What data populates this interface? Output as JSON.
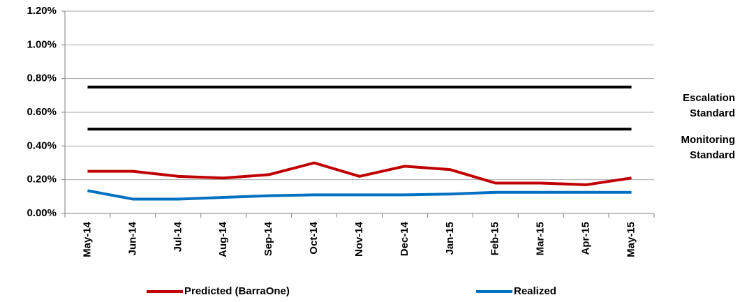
{
  "chart_data": {
    "type": "line",
    "categories": [
      "May-14",
      "Jun-14",
      "Jul-14",
      "Aug-14",
      "Sep-14",
      "Oct-14",
      "Nov-14",
      "Dec-14",
      "Jan-15",
      "Feb-15",
      "Mar-15",
      "Apr-15",
      "May-15"
    ],
    "series": [
      {
        "name": "Predicted (BarraOne)",
        "color": "#c00000",
        "values": [
          0.25,
          0.25,
          0.22,
          0.21,
          0.23,
          0.3,
          0.22,
          0.28,
          0.26,
          0.18,
          0.18,
          0.17,
          0.21
        ]
      },
      {
        "name": "Realized",
        "color": "#0070c0",
        "values": [
          0.135,
          0.085,
          0.085,
          0.095,
          0.105,
          0.11,
          0.11,
          0.11,
          0.115,
          0.125,
          0.125,
          0.125,
          0.125
        ]
      }
    ],
    "reference_lines": [
      {
        "name": "Escalation Standard",
        "value": 0.75,
        "color": "#000000"
      },
      {
        "name": "Monitoring Standard",
        "value": 0.5,
        "color": "#000000"
      }
    ],
    "ylim": [
      0,
      1.2
    ],
    "yticks": [
      {
        "value": 0,
        "label": "0.00%"
      },
      {
        "value": 0.2,
        "label": "0.20%"
      },
      {
        "value": 0.4,
        "label": "0.40%"
      },
      {
        "value": 0.6,
        "label": "0.60%"
      },
      {
        "value": 0.8,
        "label": "0.80%"
      },
      {
        "value": 1.0,
        "label": "1.00%"
      },
      {
        "value": 1.2,
        "label": "1.20%"
      }
    ],
    "grid": true,
    "legend": "bottom"
  }
}
